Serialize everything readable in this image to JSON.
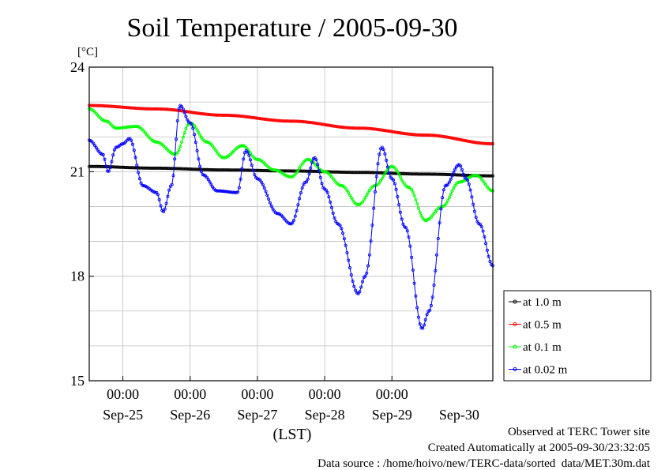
{
  "chart_data": {
    "type": "line",
    "title": "Soil Temperature / 2005-09-30",
    "yunit": "[°C]",
    "xlabel": "(LST)",
    "ylim": [
      15,
      24
    ],
    "yticks": [
      15,
      18,
      21,
      24
    ],
    "xlim_days": [
      -0.5,
      5.5
    ],
    "x_day_labels": [
      "Sep-25",
      "Sep-26",
      "Sep-27",
      "Sep-28",
      "Sep-29",
      "Sep-30"
    ],
    "x_time_label": "00:00",
    "grid": true,
    "legend_position": "right-bottom",
    "series": [
      {
        "name": "at 1.0 m",
        "color": "#000000",
        "x": [
          -0.5,
          0.5,
          1.5,
          2.5,
          3.5,
          4.5,
          5.5
        ],
        "y": [
          21.15,
          21.1,
          21.05,
          21.02,
          20.98,
          20.93,
          20.88
        ]
      },
      {
        "name": "at 0.5 m",
        "color": "#ff0000",
        "x": [
          -0.5,
          0.5,
          1.5,
          2.5,
          3.5,
          4.5,
          5.5
        ],
        "y": [
          22.9,
          22.8,
          22.62,
          22.45,
          22.25,
          22.05,
          21.8
        ]
      },
      {
        "name": "at 0.1 m",
        "color": "#00ff00",
        "x": [
          -0.5,
          -0.25,
          -0.1,
          0.2,
          0.5,
          0.78,
          1.0,
          1.25,
          1.5,
          1.78,
          2.0,
          2.25,
          2.5,
          2.75,
          3.0,
          3.25,
          3.5,
          3.75,
          4.0,
          4.25,
          4.5,
          4.75,
          5.0,
          5.25,
          5.5
        ],
        "y": [
          22.8,
          22.45,
          22.25,
          22.3,
          21.85,
          21.5,
          22.4,
          21.85,
          21.4,
          21.75,
          21.35,
          21.05,
          20.85,
          21.35,
          21.0,
          20.6,
          20.05,
          20.6,
          21.15,
          20.55,
          19.6,
          20.0,
          20.7,
          20.9,
          20.45
        ]
      },
      {
        "name": "at 0.02 m",
        "color": "#0000ff",
        "x": [
          -0.5,
          -0.3,
          -0.22,
          -0.1,
          0.0,
          0.1,
          0.3,
          0.5,
          0.6,
          0.72,
          0.85,
          1.0,
          1.2,
          1.4,
          1.7,
          1.83,
          2.0,
          2.3,
          2.5,
          2.72,
          2.85,
          3.0,
          3.2,
          3.5,
          3.6,
          3.85,
          4.0,
          4.2,
          4.45,
          4.55,
          4.8,
          5.0,
          5.1,
          5.3,
          5.5
        ],
        "y": [
          21.9,
          21.5,
          21.0,
          21.7,
          21.8,
          21.95,
          20.6,
          20.4,
          19.85,
          20.6,
          22.9,
          22.4,
          20.9,
          20.45,
          20.4,
          21.6,
          20.8,
          19.8,
          19.5,
          20.7,
          21.4,
          20.5,
          19.5,
          17.5,
          18.0,
          21.7,
          20.8,
          19.4,
          16.5,
          17.0,
          20.6,
          21.2,
          20.8,
          19.5,
          18.3
        ]
      }
    ]
  },
  "footer": {
    "line1": "Observed at TERC Tower site",
    "line2": "Created Automatically at 2005-09-30/23:32:05",
    "line3": "Data source : /home/hoivo/new/TERC-data/sorted  data/MET.30m.dat"
  }
}
